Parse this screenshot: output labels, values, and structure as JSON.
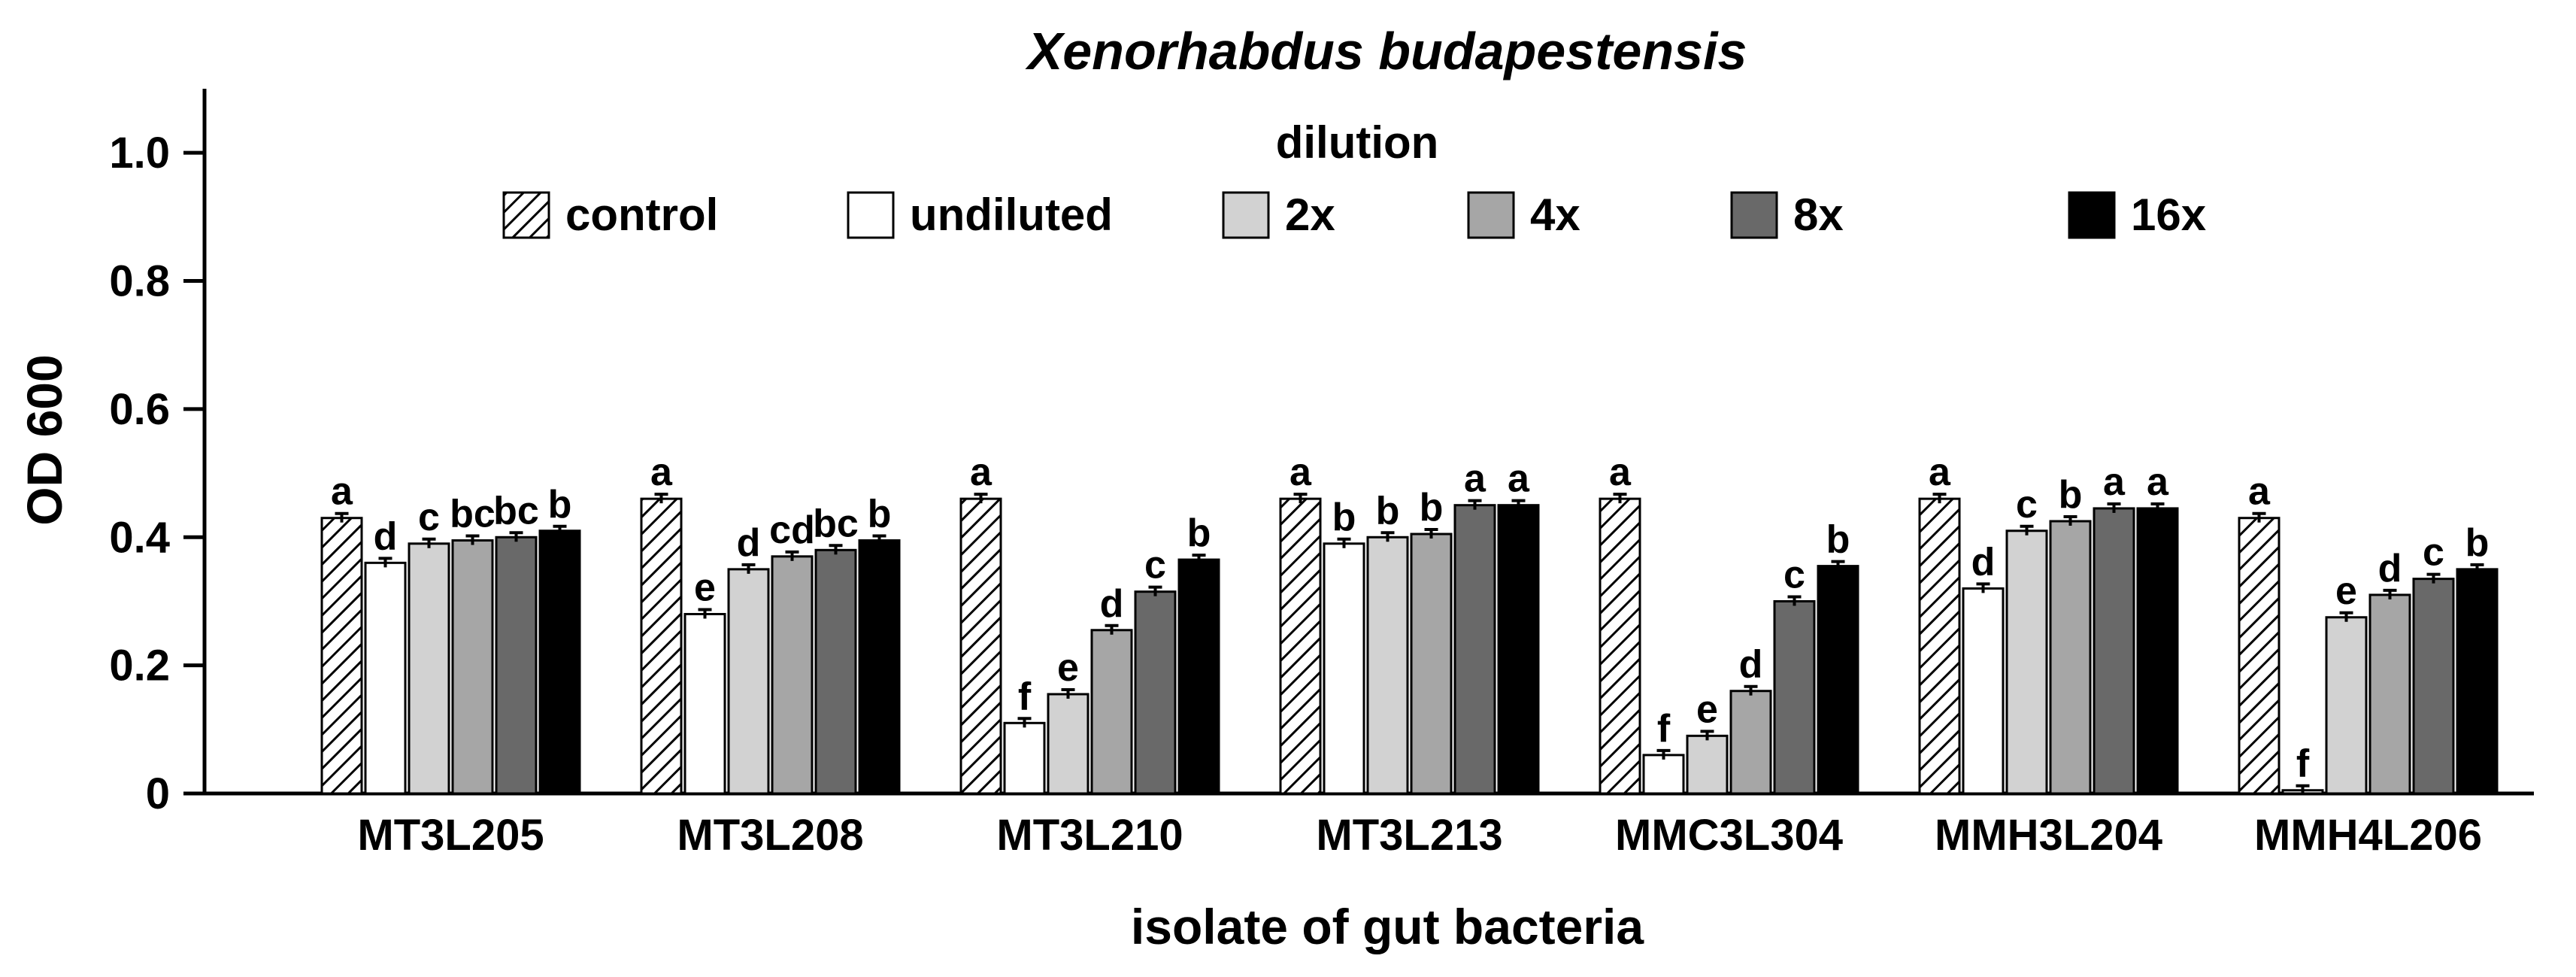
{
  "colors": {
    "control": "hatch",
    "undiluted": "#ffffff",
    "2x": "#d2d2d2",
    "4x": "#a6a6a6",
    "8x": "#696969",
    "16x": "#000000"
  },
  "chart_data": {
    "type": "bar",
    "title": "Xenorhabdus budapestensis",
    "xlabel": "isolate of gut bacteria",
    "ylabel": "OD 600",
    "ylim": [
      0,
      1.1
    ],
    "yticks": [
      "0",
      "0.2",
      "0.4",
      "0.6",
      "0.8",
      "1.0"
    ],
    "ytick_values": [
      0,
      0.2,
      0.4,
      0.6,
      0.8,
      1.0
    ],
    "grid": false,
    "legend_title": "dilution",
    "legend_position": "top",
    "categories": [
      "MT3L205",
      "MT3L208",
      "MT3L210",
      "MT3L213",
      "MMC3L304",
      "MMH3L204",
      "MMH4L206"
    ],
    "series": [
      {
        "name": "control",
        "values": [
          0.43,
          0.46,
          0.46,
          0.46,
          0.46,
          0.46,
          0.43
        ],
        "sig": [
          "a",
          "a",
          "a",
          "a",
          "a",
          "a",
          "a"
        ]
      },
      {
        "name": "undiluted",
        "values": [
          0.36,
          0.28,
          0.11,
          0.39,
          0.06,
          0.32,
          0.005
        ],
        "sig": [
          "d",
          "e",
          "f",
          "b",
          "f",
          "d",
          "f"
        ]
      },
      {
        "name": "2x",
        "values": [
          0.39,
          0.35,
          0.155,
          0.4,
          0.09,
          0.41,
          0.275
        ],
        "sig": [
          "c",
          "d",
          "e",
          "b",
          "e",
          "c",
          "e"
        ]
      },
      {
        "name": "4x",
        "values": [
          0.395,
          0.37,
          0.255,
          0.405,
          0.16,
          0.425,
          0.31
        ],
        "sig": [
          "bc",
          "cd",
          "d",
          "b",
          "d",
          "b",
          "d"
        ]
      },
      {
        "name": "8x",
        "values": [
          0.4,
          0.38,
          0.315,
          0.45,
          0.3,
          0.445,
          0.335
        ],
        "sig": [
          "bc",
          "bc",
          "c",
          "a",
          "c",
          "a",
          "c"
        ]
      },
      {
        "name": "16x",
        "values": [
          0.41,
          0.395,
          0.365,
          0.45,
          0.355,
          0.445,
          0.35
        ],
        "sig": [
          "b",
          "b",
          "b",
          "a",
          "b",
          "a",
          "b"
        ]
      }
    ]
  }
}
